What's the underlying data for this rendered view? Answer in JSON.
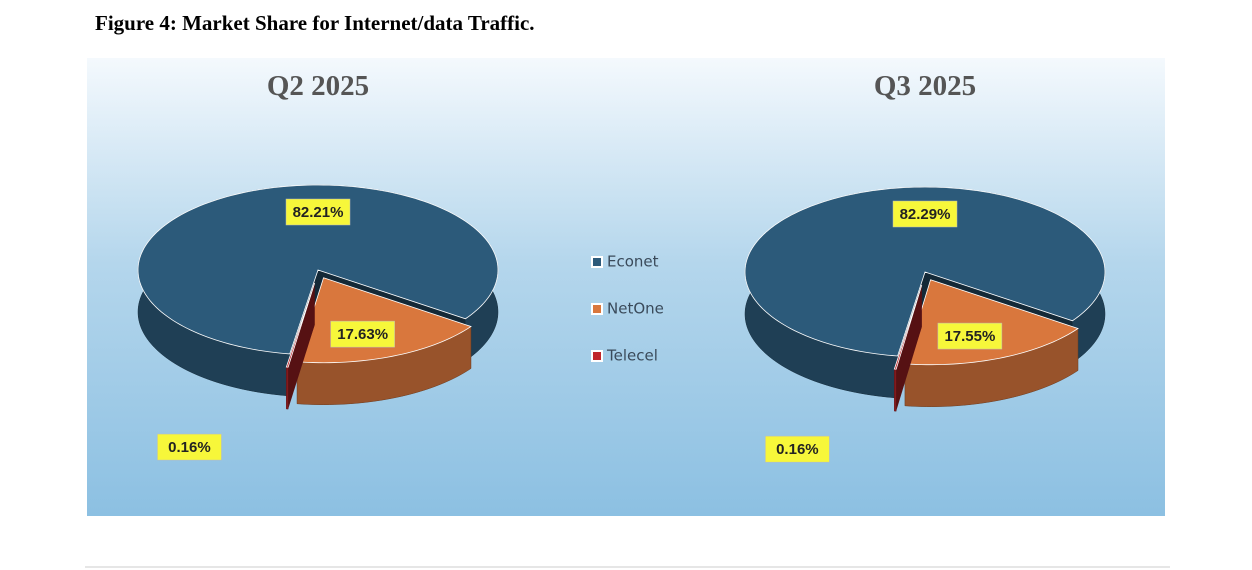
{
  "caption": "Figure 4: Market Share for Internet/data Traffic.",
  "chart_data": [
    {
      "type": "pie",
      "title": "Q2 2025",
      "categories": [
        "Econet",
        "NetOne",
        "Telecel"
      ],
      "values": [
        82.21,
        17.63,
        0.16
      ],
      "value_labels": [
        "82.21%",
        "17.63%",
        "0.16%"
      ],
      "colors": [
        "#2c5a7a",
        "#d9773d",
        "#c0262b"
      ]
    },
    {
      "type": "pie",
      "title": "Q3 2025",
      "categories": [
        "Econet",
        "NetOne",
        "Telecel"
      ],
      "values": [
        82.29,
        17.55,
        0.16
      ],
      "value_labels": [
        "82.29%",
        "17.55%",
        "0.16%"
      ],
      "colors": [
        "#2c5a7a",
        "#d9773d",
        "#c0262b"
      ]
    }
  ]
}
